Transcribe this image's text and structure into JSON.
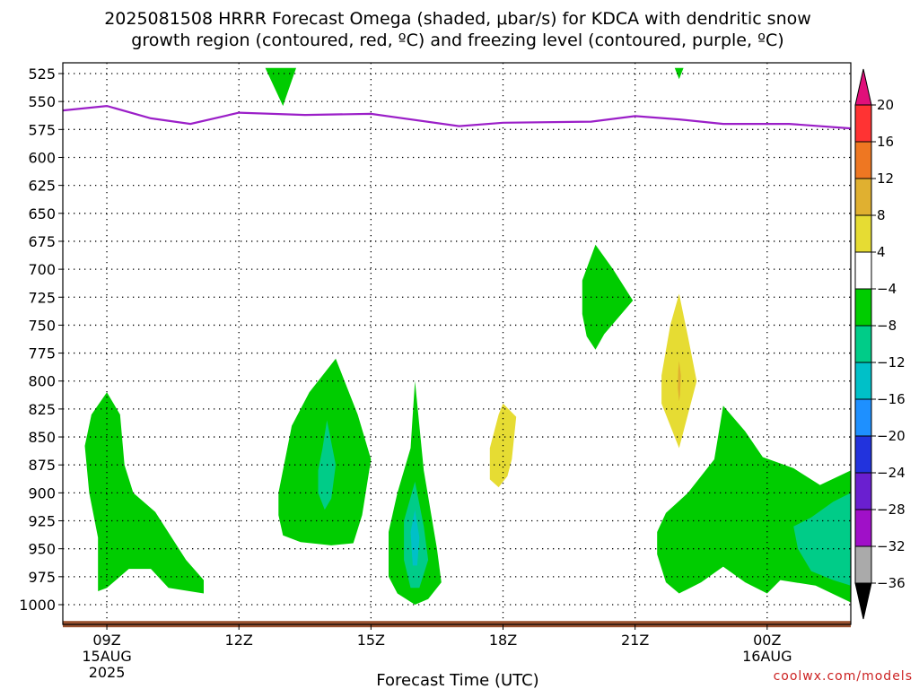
{
  "title": {
    "line1": "2025081508 HRRR Forecast Omega (shaded, μbar/s) for KDCA with dendritic snow",
    "line2": "growth region (contoured, red, ºC) and freezing level (contoured, purple, ºC)"
  },
  "credit": "coolwx.com/models",
  "colors": {
    "freezing_level": "#9b1fc8",
    "surface": "#9a5230",
    "grid": "#000000"
  },
  "chart_data": {
    "type": "heatmap",
    "xlabel": "Forecast Time (UTC)",
    "ylabel": "",
    "xlim": [
      8,
      25.9
    ],
    "ylim": [
      1010,
      520
    ],
    "x_ticks": [
      {
        "x": 9,
        "line1": "09Z",
        "line2": "15AUG",
        "line3": "2025"
      },
      {
        "x": 12,
        "line1": "12Z",
        "line2": "",
        "line3": ""
      },
      {
        "x": 15,
        "line1": "15Z",
        "line2": "",
        "line3": ""
      },
      {
        "x": 18,
        "line1": "18Z",
        "line2": "",
        "line3": ""
      },
      {
        "x": 21,
        "line1": "21Z",
        "line2": "",
        "line3": ""
      },
      {
        "x": 24,
        "line1": "00Z",
        "line2": "16AUG",
        "line3": ""
      }
    ],
    "y_ticks": [
      525,
      550,
      575,
      600,
      625,
      650,
      675,
      700,
      725,
      750,
      775,
      800,
      825,
      850,
      875,
      900,
      925,
      950,
      975,
      1000
    ],
    "colorbar": {
      "labels": [
        "20",
        "16",
        "12",
        "8",
        "4",
        "−4",
        "−8",
        "−12",
        "−16",
        "−20",
        "−24",
        "−28",
        "−32",
        "−36"
      ],
      "bins": [
        {
          "color": "#ff3333"
        },
        {
          "color": "#ee7722"
        },
        {
          "color": "#e0b030"
        },
        {
          "color": "#e6dc33"
        },
        {
          "color": "#ffffff"
        },
        {
          "color": "#00cc00"
        },
        {
          "color": "#00cc88"
        },
        {
          "color": "#00c0c8"
        },
        {
          "color": "#1e90ff"
        },
        {
          "color": "#2233dd"
        },
        {
          "color": "#6a1fd0"
        },
        {
          "color": "#a010c8"
        },
        {
          "color": "#aaaaaa"
        }
      ],
      "top_arrow_color": "#e0107a",
      "bottom_arrow_color": "#000000"
    },
    "freezing_level": [
      [
        8.0,
        558
      ],
      [
        9.0,
        554
      ],
      [
        10.0,
        565
      ],
      [
        10.9,
        570
      ],
      [
        12.0,
        560
      ],
      [
        13.5,
        562
      ],
      [
        15.0,
        561
      ],
      [
        17.0,
        572
      ],
      [
        18.0,
        569
      ],
      [
        20.0,
        568
      ],
      [
        21.0,
        563
      ],
      [
        22.0,
        566
      ],
      [
        23.0,
        570
      ],
      [
        24.5,
        570
      ],
      [
        25.9,
        574
      ]
    ],
    "shaded_regions": [
      {
        "name": "omega-green-top-1",
        "value": -6,
        "color": "#00cc00",
        "points": [
          [
            12.6,
            520
          ],
          [
            13.3,
            520
          ],
          [
            13.0,
            554
          ]
        ]
      },
      {
        "name": "omega-green-top-2",
        "value": -6,
        "color": "#00cc00",
        "points": [
          [
            21.9,
            520
          ],
          [
            22.1,
            520
          ],
          [
            22.0,
            530
          ]
        ]
      },
      {
        "name": "omega-green-left",
        "value": -6,
        "color": "#00cc00",
        "points": [
          [
            8.5,
            858
          ],
          [
            8.65,
            830
          ],
          [
            9.0,
            810
          ],
          [
            9.3,
            830
          ],
          [
            9.4,
            875
          ],
          [
            9.6,
            900
          ],
          [
            10.1,
            917
          ],
          [
            10.8,
            960
          ],
          [
            11.2,
            978
          ],
          [
            11.2,
            990
          ],
          [
            10.4,
            985
          ],
          [
            10.0,
            968
          ],
          [
            9.5,
            968
          ],
          [
            9.0,
            985
          ],
          [
            8.8,
            988
          ],
          [
            8.8,
            940
          ],
          [
            8.6,
            900
          ]
        ]
      },
      {
        "name": "omega-green-mid-1",
        "value": -6,
        "color": "#00cc00",
        "points": [
          [
            12.9,
            900
          ],
          [
            13.2,
            840
          ],
          [
            13.6,
            810
          ],
          [
            14.2,
            780
          ],
          [
            14.7,
            830
          ],
          [
            15.0,
            870
          ],
          [
            14.8,
            920
          ],
          [
            14.6,
            945
          ],
          [
            14.1,
            947
          ],
          [
            13.4,
            944
          ],
          [
            13.0,
            938
          ],
          [
            12.9,
            920
          ]
        ]
      },
      {
        "name": "omega-teal-mid-1",
        "value": -10,
        "color": "#00cc88",
        "points": [
          [
            13.8,
            880
          ],
          [
            13.9,
            860
          ],
          [
            14.0,
            835
          ],
          [
            14.2,
            875
          ],
          [
            14.1,
            905
          ],
          [
            13.95,
            915
          ],
          [
            13.8,
            900
          ]
        ]
      },
      {
        "name": "omega-green-mid-2",
        "value": -6,
        "color": "#00cc00",
        "points": [
          [
            15.9,
            860
          ],
          [
            15.95,
            830
          ],
          [
            16.0,
            800
          ],
          [
            16.2,
            880
          ],
          [
            16.5,
            950
          ],
          [
            16.6,
            980
          ],
          [
            16.3,
            995
          ],
          [
            16.0,
            1000
          ],
          [
            15.6,
            990
          ],
          [
            15.4,
            975
          ],
          [
            15.4,
            935
          ],
          [
            15.6,
            900
          ]
        ]
      },
      {
        "name": "omega-teal-mid-2",
        "value": -10,
        "color": "#00cc88",
        "points": [
          [
            15.75,
            925
          ],
          [
            16.0,
            890
          ],
          [
            16.2,
            930
          ],
          [
            16.3,
            960
          ],
          [
            16.1,
            985
          ],
          [
            15.9,
            985
          ],
          [
            15.75,
            960
          ]
        ]
      },
      {
        "name": "omega-cyan-mid-2",
        "value": -14,
        "color": "#00c0c8",
        "points": [
          [
            15.9,
            935
          ],
          [
            16.0,
            915
          ],
          [
            16.1,
            940
          ],
          [
            16.05,
            965
          ],
          [
            15.95,
            965
          ]
        ]
      },
      {
        "name": "omega-yellow-18z",
        "value": 6,
        "color": "#e6dc33",
        "points": [
          [
            17.7,
            860
          ],
          [
            17.9,
            830
          ],
          [
            18.0,
            820
          ],
          [
            18.3,
            832
          ],
          [
            18.2,
            870
          ],
          [
            18.1,
            885
          ],
          [
            17.9,
            895
          ],
          [
            17.7,
            888
          ]
        ]
      },
      {
        "name": "omega-green-20z",
        "value": -6,
        "color": "#00cc00",
        "points": [
          [
            19.8,
            710
          ],
          [
            20.1,
            678
          ],
          [
            20.5,
            700
          ],
          [
            20.95,
            728
          ],
          [
            20.3,
            758
          ],
          [
            20.1,
            772
          ],
          [
            19.9,
            760
          ],
          [
            19.8,
            740
          ]
        ]
      },
      {
        "name": "omega-yellow-22z",
        "value": 6,
        "color": "#e6dc33",
        "points": [
          [
            21.6,
            795
          ],
          [
            21.8,
            750
          ],
          [
            22.0,
            722
          ],
          [
            22.2,
            760
          ],
          [
            22.4,
            800
          ],
          [
            22.2,
            830
          ],
          [
            22.0,
            860
          ],
          [
            21.8,
            840
          ],
          [
            21.6,
            820
          ]
        ]
      },
      {
        "name": "omega-orange-22z",
        "value": 10,
        "color": "#e0b030",
        "points": [
          [
            21.98,
            790
          ],
          [
            22.0,
            782
          ],
          [
            22.04,
            795
          ],
          [
            22.02,
            812
          ],
          [
            22.0,
            818
          ],
          [
            21.97,
            806
          ]
        ]
      },
      {
        "name": "omega-green-right",
        "value": -6,
        "color": "#00cc00",
        "points": [
          [
            21.5,
            935
          ],
          [
            21.7,
            918
          ],
          [
            22.2,
            900
          ],
          [
            22.8,
            870
          ],
          [
            23.0,
            822
          ],
          [
            23.5,
            845
          ],
          [
            23.9,
            868
          ],
          [
            24.6,
            878
          ],
          [
            25.2,
            893
          ],
          [
            25.9,
            880
          ],
          [
            25.9,
            998
          ],
          [
            25.1,
            983
          ],
          [
            24.3,
            978
          ],
          [
            24.0,
            990
          ],
          [
            23.5,
            980
          ],
          [
            23.0,
            966
          ],
          [
            22.5,
            980
          ],
          [
            22.0,
            990
          ],
          [
            21.7,
            980
          ],
          [
            21.5,
            955
          ]
        ]
      },
      {
        "name": "omega-teal-right",
        "value": -10,
        "color": "#00cc88",
        "points": [
          [
            24.6,
            930
          ],
          [
            25.0,
            922
          ],
          [
            25.5,
            908
          ],
          [
            25.9,
            900
          ],
          [
            25.9,
            983
          ],
          [
            25.5,
            978
          ],
          [
            25.0,
            970
          ],
          [
            24.7,
            950
          ]
        ]
      }
    ],
    "surface_band": {
      "pressure": 1017,
      "x_start": 8.0,
      "x_end": 25.9
    }
  }
}
